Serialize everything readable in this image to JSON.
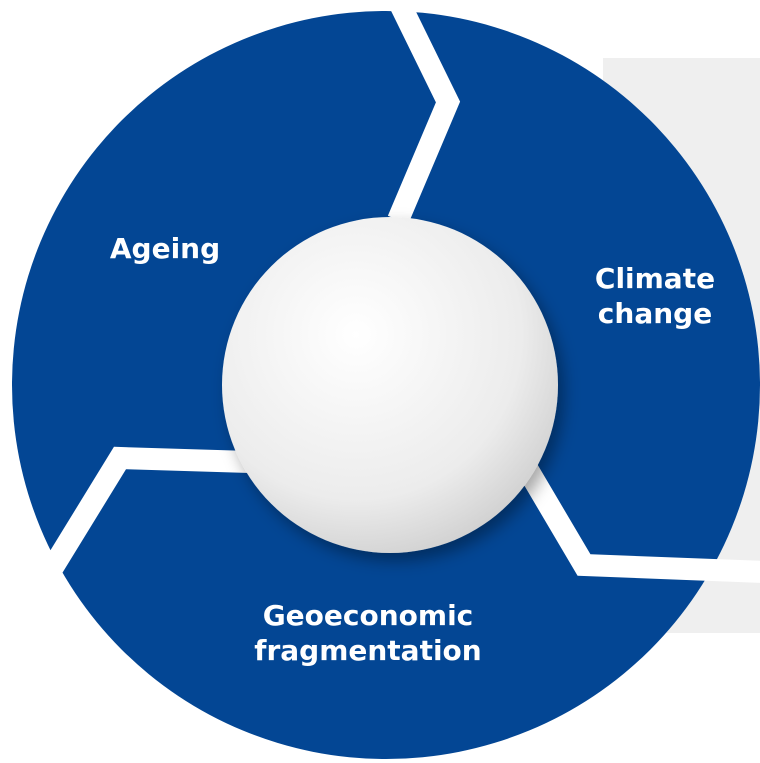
{
  "segments": [
    {
      "label": "Ageing"
    },
    {
      "label": "Climate change"
    },
    {
      "label": "Geoeconomic fragmentation"
    }
  ]
}
